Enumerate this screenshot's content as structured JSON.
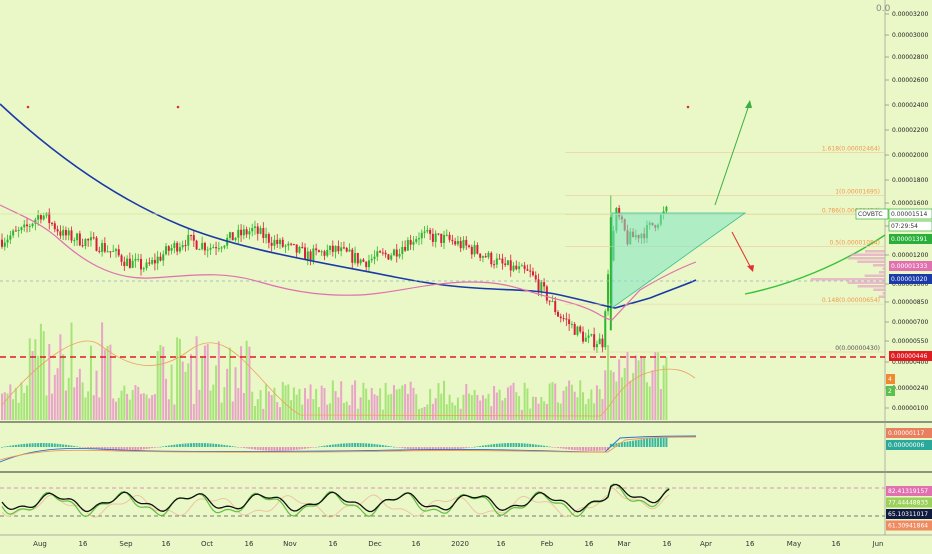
{
  "chart_data": {
    "type": "candlestick",
    "symbol_tag": "COVBTC",
    "colors": {
      "background": "#eaf7c6",
      "up_candle": "#2db62d",
      "down_candle": "#d91e3c",
      "ma_blue": "#1a3aa8",
      "ma_pink": "#e070b0",
      "ma_green": "#36c23a",
      "support_line": "#e01b22",
      "triangle_fill": "#7ee6c4",
      "projection_arrow": "#3cb043",
      "down_arrow": "#e03030",
      "fib_text": "#f09a50",
      "price_axis_text": "#222222"
    },
    "x_axis_labels": [
      "Aug",
      "16",
      "Sep",
      "16",
      "Oct",
      "16",
      "Nov",
      "16",
      "Dec",
      "16",
      "2020",
      "16",
      "Feb",
      "16",
      "Mar",
      "16",
      "Apr",
      "16",
      "May",
      "16",
      "Jun"
    ],
    "price_axis": {
      "scale": "log",
      "ticks": [
        "0.00003200",
        "0.00003000",
        "0.00002800",
        "0.00002600",
        "0.00002400",
        "0.00002200",
        "0.00002000",
        "0.00001800",
        "0.00001600",
        "0.00001400",
        "0.00001200",
        "0.00001000",
        "0.00000850",
        "0.00000700",
        "0.00000550",
        "0.00000400",
        "0.00000240",
        "0.00000100"
      ],
      "top_label": "0.0"
    },
    "price_tags": [
      {
        "text": "COVBTC",
        "value": "0.00001514",
        "style": "symbol"
      },
      {
        "text": "",
        "value": "07:29:54",
        "style": "countdown"
      },
      {
        "text": "",
        "value": "0.00001391",
        "style": "green"
      },
      {
        "text": "",
        "value": "0.00001333",
        "style": "pink"
      },
      {
        "text": "",
        "value": "0.00001020",
        "style": "blue"
      },
      {
        "text": "",
        "value": "0.00000446",
        "style": "red"
      }
    ],
    "fib_levels": [
      {
        "label": "1.618(0.00002464)",
        "value": 2.464e-05
      },
      {
        "label": "1(0.00001695)",
        "value": 1.695e-05
      },
      {
        "label": "0.786(0.00001434)",
        "value": 1.434e-05
      },
      {
        "label": "0.5(0.00001084)",
        "value": 1.084e-05
      },
      {
        "label": "0.148(0.00000654)",
        "value": 6.54e-06
      },
      {
        "label": "0(0.00000430)",
        "value": 4.3e-06
      }
    ],
    "volume_tags": [
      "4",
      "2"
    ],
    "macd_tags": [
      "0.00000117",
      "0.00000006"
    ],
    "rsi_tags": [
      "82.41319157",
      "77.44448833",
      "65.10311017",
      "61.30941864"
    ]
  }
}
